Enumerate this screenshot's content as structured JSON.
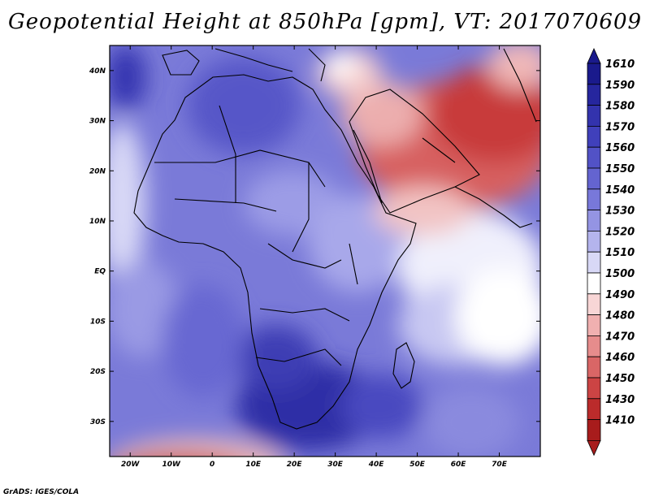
{
  "title": "Geopotential Height at 850hPa [gpm], VT: 2017070609",
  "credit": "GrADS: IGES/COLA",
  "map": {
    "lon_range": [
      -25,
      80
    ],
    "lat_range": [
      -37,
      45
    ],
    "lon_ticks": [
      "20W",
      "10W",
      "0",
      "10E",
      "20E",
      "30E",
      "40E",
      "50E",
      "60E",
      "70E"
    ],
    "lat_ticks": [
      "40N",
      "30N",
      "20N",
      "10N",
      "EQ",
      "10S",
      "20S",
      "30S"
    ],
    "field_summary": "high heights (blue) over Africa and the South Atlantic/Indian Ocean, low heights (red) over the Middle East, Arabia, Iran/Pakistan and the far South Atlantic"
  },
  "colorbar": {
    "labels": [
      "1610",
      "1590",
      "1580",
      "1570",
      "1560",
      "1550",
      "1540",
      "1530",
      "1520",
      "1510",
      "1500",
      "1490",
      "1480",
      "1470",
      "1460",
      "1450",
      "1430",
      "1410"
    ],
    "colors": [
      "#1a1a8c",
      "#26269e",
      "#3333ad",
      "#4040bb",
      "#5252c6",
      "#6464d0",
      "#7878da",
      "#9494e3",
      "#b4b4ed",
      "#d8d8f6",
      "#ffffff",
      "#f8d6d6",
      "#f0b0b0",
      "#e68c8c",
      "#d96666",
      "#cc4444",
      "#bb2b2b",
      "#a81c1c"
    ]
  }
}
